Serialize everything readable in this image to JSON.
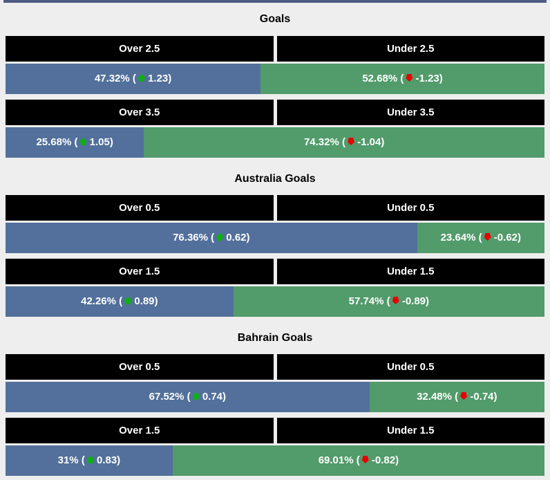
{
  "page": {
    "background_color": "#eeeeee",
    "top_border_color": "#4d5c85"
  },
  "colors": {
    "over_bar": "#52709b",
    "under_bar": "#529b6b",
    "header_background": "#000000",
    "header_text": "#ffffff",
    "bar_text": "#ffffff",
    "title_text": "#000000",
    "up_arrow": "#0fae14",
    "down_arrow": "#e60000"
  },
  "chart_data": [
    {
      "type": "bar",
      "title": "Goals",
      "unit": "%",
      "rows": [
        {
          "over": {
            "header": "Over 2.5",
            "percent": 47.32,
            "odds": 1.23,
            "label_pre": "47.32% (",
            "label_post": " 1.23)"
          },
          "under": {
            "header": "Under 2.5",
            "percent": 52.68,
            "odds": -1.23,
            "label_pre": "52.68% (",
            "label_post": " -1.23)"
          }
        },
        {
          "over": {
            "header": "Over 3.5",
            "percent": 25.68,
            "odds": 1.05,
            "label_pre": "25.68% (",
            "label_post": " 1.05)"
          },
          "under": {
            "header": "Under 3.5",
            "percent": 74.32,
            "odds": -1.04,
            "label_pre": "74.32% (",
            "label_post": " -1.04)"
          }
        }
      ]
    },
    {
      "type": "bar",
      "title": "Australia Goals",
      "unit": "%",
      "rows": [
        {
          "over": {
            "header": "Over 0.5",
            "percent": 76.36,
            "odds": 0.62,
            "label_pre": "76.36% (",
            "label_post": " 0.62)"
          },
          "under": {
            "header": "Under 0.5",
            "percent": 23.64,
            "odds": -0.62,
            "label_pre": "23.64% (",
            "label_post": " -0.62)"
          }
        },
        {
          "over": {
            "header": "Over 1.5",
            "percent": 42.26,
            "odds": 0.89,
            "label_pre": "42.26% (",
            "label_post": " 0.89)"
          },
          "under": {
            "header": "Under 1.5",
            "percent": 57.74,
            "odds": -0.89,
            "label_pre": "57.74% (",
            "label_post": " -0.89)"
          }
        }
      ]
    },
    {
      "type": "bar",
      "title": "Bahrain Goals",
      "unit": "%",
      "rows": [
        {
          "over": {
            "header": "Over 0.5",
            "percent": 67.52,
            "odds": 0.74,
            "label_pre": "67.52% (",
            "label_post": " 0.74)"
          },
          "under": {
            "header": "Under 0.5",
            "percent": 32.48,
            "odds": -0.74,
            "label_pre": "32.48% (",
            "label_post": " -0.74)"
          }
        },
        {
          "over": {
            "header": "Over 1.5",
            "percent": 31,
            "odds": 0.83,
            "label_pre": "31% (",
            "label_post": " 0.83)"
          },
          "under": {
            "header": "Under 1.5",
            "percent": 69.01,
            "odds": -0.82,
            "label_pre": "69.01% (",
            "label_post": " -0.82)"
          }
        }
      ]
    }
  ]
}
